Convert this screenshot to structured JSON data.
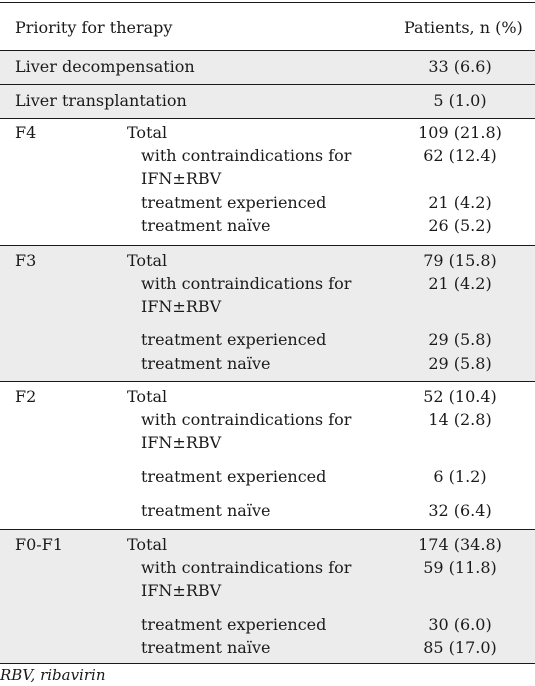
{
  "header": {
    "col1": "Priority for therapy",
    "col2": "Patients, n (%)"
  },
  "rows": {
    "liver_decompensation": {
      "label": "Liver decompensation",
      "value": "33 (6.6)"
    },
    "liver_transplantation": {
      "label": "Liver transplantation",
      "value": "5 (1.0)"
    }
  },
  "groups": [
    {
      "stage": "F4",
      "total": {
        "label": "Total",
        "value": "109 (21.8)"
      },
      "contra": {
        "label1": "with contraindications for",
        "label2": "IFN±RBV",
        "value": "62 (12.4)"
      },
      "experienced": {
        "label": "treatment experienced",
        "value": "21 (4.2)"
      },
      "naive": {
        "label": "treatment naïve",
        "value": "26 (5.2)"
      }
    },
    {
      "stage": "F3",
      "total": {
        "label": "Total",
        "value": "79 (15.8)"
      },
      "contra": {
        "label1": "with contraindications for",
        "label2": "IFN±RBV",
        "value": "21 (4.2)"
      },
      "experienced": {
        "label": "treatment experienced",
        "value": "29 (5.8)"
      },
      "naive": {
        "label": "treatment naïve",
        "value": "29 (5.8)"
      }
    },
    {
      "stage": "F2",
      "total": {
        "label": "Total",
        "value": "52 (10.4)"
      },
      "contra": {
        "label1": "with contraindications for",
        "label2": "IFN±RBV",
        "value": "14 (2.8)"
      },
      "experienced": {
        "label": "treatment experienced",
        "value": "6 (1.2)"
      },
      "naive": {
        "label": "treatment naïve",
        "value": "32 (6.4)"
      }
    },
    {
      "stage": "F0-F1",
      "total": {
        "label": "Total",
        "value": "174 (34.8)"
      },
      "contra": {
        "label1": "with contraindications for",
        "label2": "IFN±RBV",
        "value": "59 (11.8)"
      },
      "experienced": {
        "label": "treatment experienced",
        "value": "30 (6.0)"
      },
      "naive": {
        "label": "treatment naïve",
        "value": "85 (17.0)"
      }
    }
  ],
  "footnote": "RBV, ribavirin"
}
